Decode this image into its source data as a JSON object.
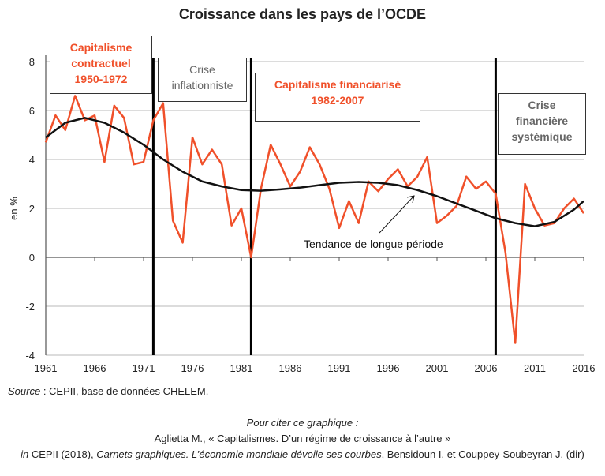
{
  "chart_data": {
    "type": "line",
    "title": "Croissance dans les pays de l’OCDE",
    "ylabel": "en %",
    "xlabel": "",
    "ylim": [
      -4,
      8
    ],
    "xlim": [
      1961,
      2016
    ],
    "yticks": [
      "-4",
      "-2",
      "0",
      "2",
      "4",
      "6",
      "8"
    ],
    "xticks": [
      "1961",
      "1966",
      "1971",
      "1976",
      "1981",
      "1986",
      "1991",
      "1996",
      "2001",
      "2006",
      "2011",
      "2016"
    ],
    "grid": true,
    "series": [
      {
        "name": "Croissance",
        "color": "#f0502a",
        "x": [
          1961,
          1962,
          1963,
          1964,
          1965,
          1966,
          1967,
          1968,
          1969,
          1970,
          1971,
          1972,
          1973,
          1974,
          1975,
          1976,
          1977,
          1978,
          1979,
          1980,
          1981,
          1982,
          1983,
          1984,
          1985,
          1986,
          1987,
          1988,
          1989,
          1990,
          1991,
          1992,
          1993,
          1994,
          1995,
          1996,
          1997,
          1998,
          1999,
          2000,
          2001,
          2002,
          2003,
          2004,
          2005,
          2006,
          2007,
          2008,
          2009,
          2010,
          2011,
          2012,
          2013,
          2014,
          2015,
          2016
        ],
        "values": [
          4.7,
          5.8,
          5.2,
          6.6,
          5.6,
          5.8,
          3.9,
          6.2,
          5.7,
          3.8,
          3.9,
          5.6,
          6.3,
          1.5,
          0.6,
          4.9,
          3.8,
          4.4,
          3.8,
          1.3,
          2.0,
          0.0,
          2.8,
          4.6,
          3.8,
          2.9,
          3.5,
          4.5,
          3.8,
          2.8,
          1.2,
          2.3,
          1.4,
          3.1,
          2.7,
          3.2,
          3.6,
          2.9,
          3.3,
          4.1,
          1.4,
          1.7,
          2.1,
          3.3,
          2.8,
          3.1,
          2.6,
          0.2,
          -3.5,
          3.0,
          2.0,
          1.3,
          1.4,
          2.0,
          2.4,
          1.8
        ]
      },
      {
        "name": "Tendance de longue période",
        "color": "#111111",
        "x": [
          1961,
          1963,
          1965,
          1967,
          1969,
          1971,
          1973,
          1975,
          1977,
          1979,
          1981,
          1983,
          1985,
          1987,
          1989,
          1991,
          1993,
          1995,
          1997,
          1999,
          2001,
          2003,
          2005,
          2007,
          2009,
          2011,
          2013,
          2015,
          2016
        ],
        "values": [
          4.9,
          5.5,
          5.7,
          5.5,
          5.1,
          4.6,
          4.0,
          3.5,
          3.1,
          2.9,
          2.75,
          2.72,
          2.78,
          2.85,
          2.95,
          3.05,
          3.08,
          3.05,
          2.95,
          2.75,
          2.5,
          2.2,
          1.9,
          1.6,
          1.4,
          1.27,
          1.45,
          1.95,
          2.3
        ]
      }
    ],
    "period_breaks": [
      1972,
      1982,
      2007
    ],
    "annotations": {
      "p1": [
        "Capitalisme",
        "contractuel",
        "1950-1972"
      ],
      "p2": [
        "Crise",
        "inflationniste"
      ],
      "p3": [
        "Capitalisme financiarisé",
        "1982-2007"
      ],
      "p4": [
        "Crise",
        "financière",
        "systémique"
      ],
      "trend_label": "Tendance de longue période"
    }
  },
  "footer": {
    "source_label": "Source",
    "source_text": " : CEPII, base de données CHELEM.",
    "cite_title": "Pour citer ce graphique :",
    "cite_line1": "Aglietta M., « Capitalismes. D’un régime de croissance à l’autre »",
    "cite_in": "in",
    "cite_cepii": " CEPII (2018), ",
    "cite_book": "Carnets graphiques. L’économie mondiale dévoile ses courbes",
    "cite_authors": ", Bensidoun I. et Couppey-Soubeyran J. (dir)"
  }
}
